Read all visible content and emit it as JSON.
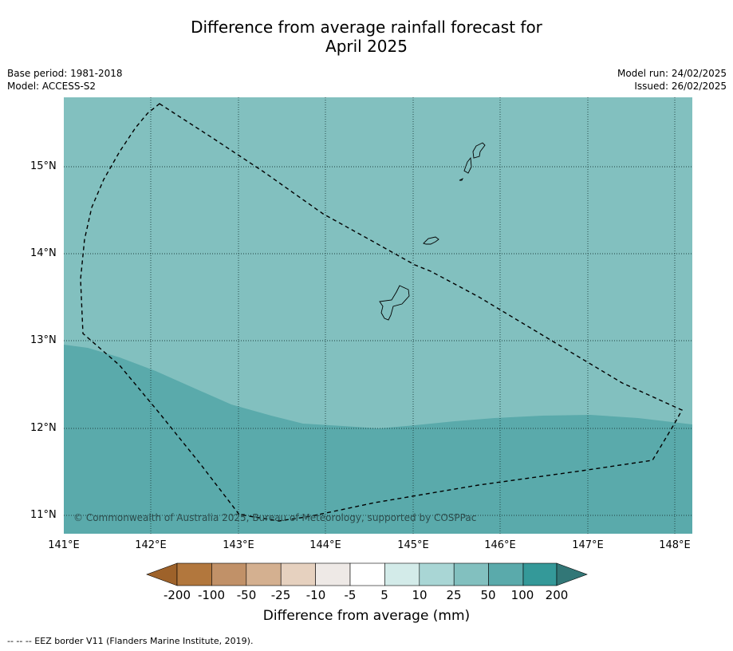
{
  "title_line1": "Difference from average rainfall forecast for",
  "title_line2": "April 2025",
  "meta_left": {
    "base_period": "Base period: 1981-2018",
    "model": "Model: ACCESS-S2"
  },
  "meta_right": {
    "model_run": "Model run: 24/02/2025",
    "issued": "Issued: 26/02/2025"
  },
  "copyright": "© Commonwealth of Australia 2025, Bureau of Meteorology, supported by COSPPac",
  "latitude_labels": [
    "15°N",
    "14°N",
    "13°N",
    "12°N",
    "11°N"
  ],
  "longitude_labels": [
    "141°E",
    "142°E",
    "143°E",
    "144°E",
    "145°E",
    "146°E",
    "147°E",
    "148°E"
  ],
  "colorbar": {
    "tick_labels": [
      "-200",
      "-100",
      "-50",
      "-25",
      "-10",
      "-5",
      "5",
      "10",
      "25",
      "50",
      "100",
      "200"
    ],
    "colors": [
      "#9e622a",
      "#b2773d",
      "#c19168",
      "#d4b090",
      "#e6d1bf",
      "#eee9e6",
      "#ffffff",
      "#d3ebe9",
      "#a9d6d5",
      "#82c0bf",
      "#5aaaab",
      "#349999",
      "#327777"
    ],
    "title": "Difference from average (mm)"
  },
  "map": {
    "region_colors": {
      "upper": "#82c0bf",
      "lower": "#5aaaab"
    },
    "border_color": "#000000"
  },
  "footnote": "--  --  -- EEZ border V11 (Flanders Marine Institute, 2019)."
}
